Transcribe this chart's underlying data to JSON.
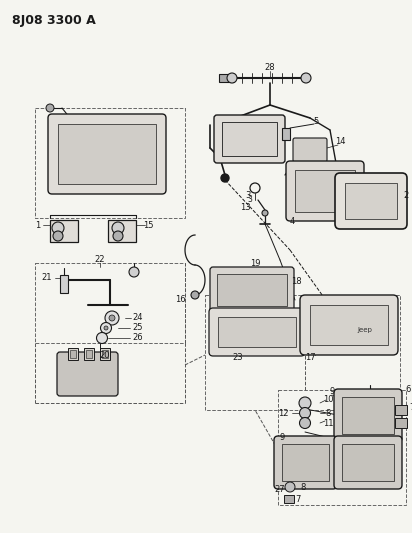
{
  "title": "8J08 3300 A",
  "bg_color": "#f5f5f0",
  "line_color": "#1a1a1a",
  "fig_width": 4.12,
  "fig_height": 5.33,
  "dpi": 100
}
